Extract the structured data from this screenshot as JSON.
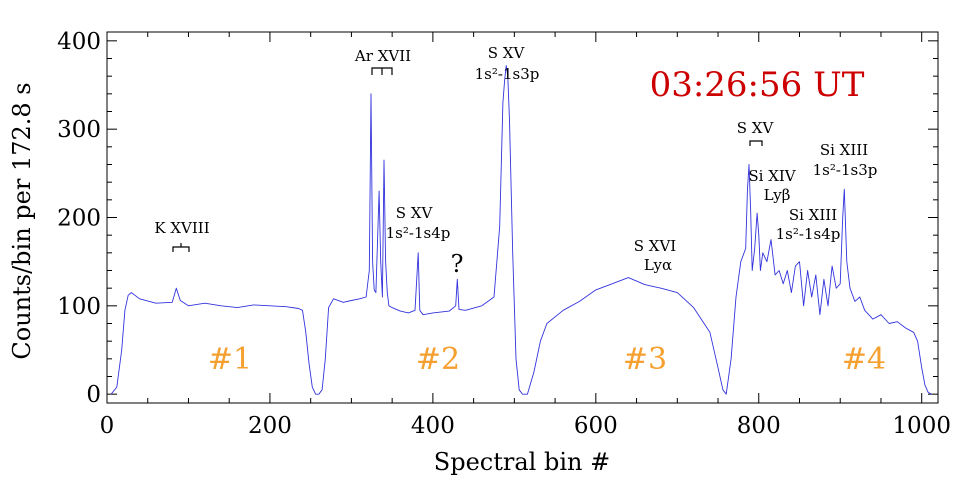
{
  "chart_data": {
    "type": "line",
    "title": "",
    "xlabel": "Spectral bin #",
    "ylabel": "Counts/bin per  172.8 s",
    "xlim": [
      0,
      1020
    ],
    "ylim": [
      -10,
      410
    ],
    "x_ticks": [
      0,
      200,
      400,
      600,
      800,
      1000
    ],
    "y_ticks": [
      0,
      100,
      200,
      300,
      400
    ],
    "grid": false,
    "line_color": "#3333dd",
    "series": [
      {
        "name": "spectrum",
        "x": [
          5,
          12,
          18,
          22,
          26,
          30,
          40,
          60,
          80,
          85,
          90,
          100,
          120,
          140,
          160,
          180,
          200,
          220,
          235,
          240,
          244,
          248,
          252,
          256,
          260,
          264,
          268,
          272,
          278,
          290,
          300,
          310,
          318,
          322,
          324,
          326,
          328,
          330,
          334,
          336,
          338,
          340,
          342,
          344,
          346,
          350,
          360,
          370,
          378,
          382,
          384,
          388,
          400,
          420,
          428,
          430,
          432,
          440,
          460,
          475,
          482,
          486,
          488,
          490,
          492,
          494,
          498,
          502,
          506,
          510,
          516,
          524,
          532,
          540,
          560,
          580,
          600,
          620,
          640,
          650,
          660,
          670,
          680,
          700,
          720,
          740,
          750,
          756,
          760,
          766,
          772,
          778,
          784,
          786,
          788,
          790,
          792,
          795,
          798,
          800,
          802,
          805,
          810,
          815,
          820,
          825,
          830,
          835,
          840,
          845,
          850,
          855,
          860,
          865,
          870,
          875,
          880,
          885,
          890,
          895,
          900,
          903,
          905,
          908,
          912,
          918,
          924,
          930,
          940,
          950,
          960,
          970,
          980,
          990,
          995,
          1000,
          1004,
          1008,
          1012
        ],
        "values": [
          0,
          8,
          50,
          95,
          112,
          115,
          108,
          103,
          104,
          120,
          106,
          100,
          103,
          100,
          98,
          101,
          100,
          99,
          97,
          95,
          70,
          35,
          8,
          0,
          0,
          5,
          40,
          98,
          108,
          104,
          106,
          108,
          110,
          140,
          340,
          150,
          118,
          115,
          230,
          150,
          110,
          265,
          150,
          115,
          100,
          98,
          94,
          92,
          95,
          160,
          95,
          90,
          92,
          94,
          100,
          130,
          96,
          95,
          100,
          110,
          190,
          330,
          355,
          372,
          360,
          310,
          160,
          40,
          5,
          0,
          0,
          25,
          60,
          80,
          95,
          105,
          118,
          125,
          132,
          128,
          124,
          122,
          120,
          115,
          98,
          70,
          30,
          5,
          0,
          40,
          110,
          150,
          165,
          230,
          260,
          210,
          140,
          165,
          205,
          180,
          140,
          160,
          150,
          175,
          135,
          140,
          125,
          140,
          115,
          145,
          150,
          100,
          140,
          110,
          135,
          90,
          130,
          100,
          145,
          120,
          125,
          200,
          232,
          150,
          120,
          105,
          110,
          95,
          85,
          90,
          80,
          82,
          75,
          70,
          60,
          30,
          10,
          2,
          0
        ]
      }
    ],
    "line_annotations": [
      {
        "label": "K XVIII",
        "x": 88
      },
      {
        "label": "Ar XVII",
        "x": 335
      },
      {
        "label": "S XV",
        "x": 395
      },
      {
        "label": "1s²-1s4p",
        "x": 395
      },
      {
        "label": "?",
        "x": 430
      },
      {
        "label": "S XV",
        "x": 495
      },
      {
        "label": "1s²-1s3p",
        "x": 495
      },
      {
        "label": "S XVI",
        "x": 670
      },
      {
        "label": "Lyα",
        "x": 670
      },
      {
        "label": "S XV",
        "x": 795
      },
      {
        "label": "Si XIV",
        "x": 810
      },
      {
        "label": "Lyβ",
        "x": 810
      },
      {
        "label": "Si XIII",
        "x": 845
      },
      {
        "label": "1s²-1s4p",
        "x": 845
      },
      {
        "label": "Si XIII",
        "x": 905
      },
      {
        "label": "1s²-1s3p",
        "x": 905
      }
    ],
    "timestamp": "03:26:56 UT",
    "timestamp_color": "#cc0000",
    "regions": [
      {
        "label": "#1",
        "x": 150
      },
      {
        "label": "#2",
        "x": 405
      },
      {
        "label": "#3",
        "x": 665
      },
      {
        "label": "#4",
        "x": 930
      }
    ],
    "region_color": "#f5a030"
  }
}
